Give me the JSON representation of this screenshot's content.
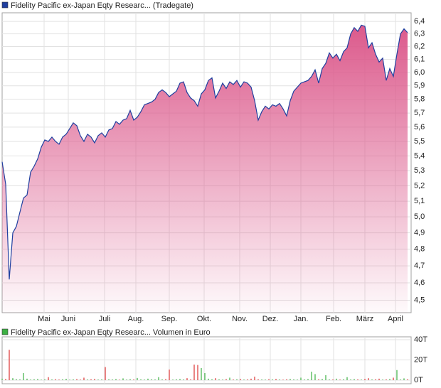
{
  "chart_data": [
    {
      "type": "area",
      "series": [
        {
          "name": "Fidelity Pacific ex-Japan Eqty Researc... (Tradegate)",
          "color": "#1f3f9f",
          "values": [
            5.36,
            5.21,
            4.62,
            4.9,
            4.94,
            5.03,
            5.12,
            5.14,
            5.29,
            5.33,
            5.38,
            5.46,
            5.51,
            5.5,
            5.53,
            5.5,
            5.48,
            5.53,
            5.55,
            5.59,
            5.63,
            5.61,
            5.54,
            5.5,
            5.55,
            5.53,
            5.49,
            5.54,
            5.56,
            5.53,
            5.58,
            5.59,
            5.64,
            5.62,
            5.65,
            5.66,
            5.72,
            5.65,
            5.67,
            5.71,
            5.76,
            5.77,
            5.78,
            5.8,
            5.85,
            5.87,
            5.85,
            5.82,
            5.84,
            5.86,
            5.92,
            5.93,
            5.85,
            5.81,
            5.79,
            5.75,
            5.84,
            5.87,
            5.94,
            5.96,
            5.81,
            5.86,
            5.92,
            5.88,
            5.93,
            5.91,
            5.94,
            5.89,
            5.93,
            5.92,
            5.89,
            5.79,
            5.65,
            5.71,
            5.75,
            5.73,
            5.76,
            5.75,
            5.77,
            5.73,
            5.68,
            5.79,
            5.86,
            5.89,
            5.92,
            5.93,
            5.94,
            5.97,
            6.02,
            5.92,
            6.03,
            6.07,
            6.15,
            6.11,
            6.14,
            6.09,
            6.16,
            6.19,
            6.3,
            6.35,
            6.32,
            6.37,
            6.36,
            6.19,
            6.23,
            6.14,
            6.08,
            6.11,
            5.94,
            6.03,
            5.97,
            6.14,
            6.3,
            6.34,
            6.31
          ]
        }
      ],
      "fill_color": "#dc5a8c",
      "yscale": "log",
      "ylim": [
        4.43,
        6.47
      ],
      "yticks": [
        {
          "value": 4.5,
          "label": "4,5"
        },
        {
          "value": 4.6,
          "label": "4,6"
        },
        {
          "value": 4.7,
          "label": "4,7"
        },
        {
          "value": 4.8,
          "label": "4,8"
        },
        {
          "value": 4.9,
          "label": "4,9"
        },
        {
          "value": 5.0,
          "label": "5,0"
        },
        {
          "value": 5.1,
          "label": "5,1"
        },
        {
          "value": 5.2,
          "label": "5,2"
        },
        {
          "value": 5.3,
          "label": "5,3"
        },
        {
          "value": 5.4,
          "label": "5,4"
        },
        {
          "value": 5.5,
          "label": "5,5"
        },
        {
          "value": 5.6,
          "label": "5,6"
        },
        {
          "value": 5.7,
          "label": "5,7"
        },
        {
          "value": 5.8,
          "label": "5,8"
        },
        {
          "value": 5.9,
          "label": "5,9"
        },
        {
          "value": 6.0,
          "label": "6,0"
        },
        {
          "value": 6.1,
          "label": "6,1"
        },
        {
          "value": 6.2,
          "label": "6,2"
        },
        {
          "value": 6.3,
          "label": "6,3"
        },
        {
          "value": 6.4,
          "label": "6,4"
        }
      ],
      "xlim": [
        0,
        115
      ],
      "xticks": [
        {
          "value": 11.8,
          "label": "Mai"
        },
        {
          "value": 18.6,
          "label": "Juni"
        },
        {
          "value": 28.8,
          "label": "Juli"
        },
        {
          "value": 37.6,
          "label": "Aug."
        },
        {
          "value": 47,
          "label": "Sep."
        },
        {
          "value": 56.8,
          "label": "Okt."
        },
        {
          "value": 66.8,
          "label": "Nov."
        },
        {
          "value": 75.4,
          "label": "Dez."
        },
        {
          "value": 84,
          "label": "Jan."
        },
        {
          "value": 93.2,
          "label": "Feb."
        },
        {
          "value": 102,
          "label": "März"
        },
        {
          "value": 110.6,
          "label": "April"
        }
      ],
      "grid": true
    },
    {
      "type": "bar",
      "series": [
        {
          "name": "Fidelity Pacific ex-Japan Eqty Researc... Volumen in Euro",
          "color": "#3cb043",
          "values": [
            1500,
            1200,
            30000,
            2000,
            1000,
            800,
            7000,
            1500,
            600,
            900,
            1200,
            500,
            800,
            3000,
            700,
            1000,
            600,
            900,
            1400,
            500,
            800,
            1100,
            600,
            2500,
            700,
            900,
            1300,
            600,
            800,
            13000,
            900,
            700,
            1200,
            500,
            1800,
            600,
            1000,
            700,
            2200,
            800,
            600,
            1500,
            900,
            700,
            3000,
            800,
            1100,
            10500,
            600,
            900,
            1200,
            700,
            2000,
            800,
            15400,
            15000,
            12000,
            7000,
            1500,
            900,
            2000,
            800,
            600,
            1100,
            2500,
            700,
            900,
            1200,
            600,
            800,
            1500,
            3500,
            900,
            700,
            600,
            1000,
            800,
            1300,
            700,
            500,
            900,
            1200,
            800,
            600,
            2500,
            700,
            1100,
            8400,
            6000,
            900,
            1200,
            5000,
            800,
            700,
            1500,
            600,
            900,
            3000,
            700,
            1100,
            800,
            600,
            1300,
            2000,
            700,
            900,
            1500,
            600,
            800,
            1200,
            2500,
            10000,
            700,
            1800,
            900
          ]
        }
      ],
      "down_color": "#dd3333",
      "ylim": [
        0,
        40000
      ],
      "yticks": [
        {
          "value": 0,
          "label": "0T"
        },
        {
          "value": 20000,
          "label": "20T"
        },
        {
          "value": 40000,
          "label": "40T"
        }
      ],
      "xlim": [
        0,
        115
      ],
      "grid": true
    }
  ]
}
